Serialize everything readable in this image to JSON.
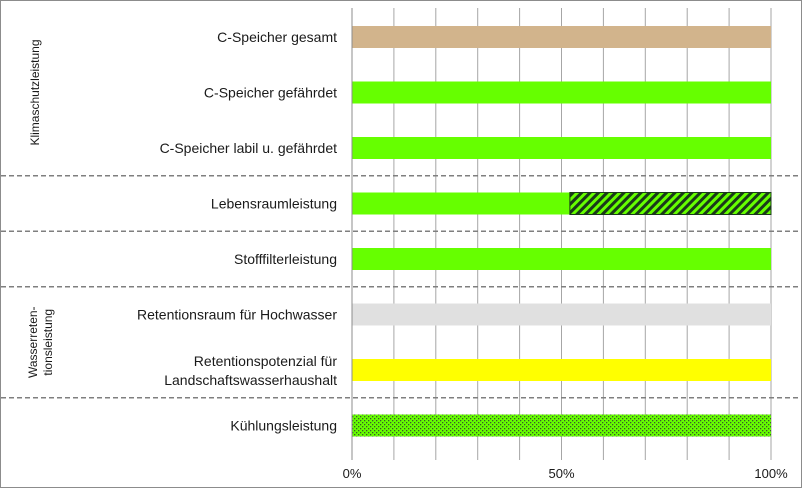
{
  "chart_data": {
    "type": "bar",
    "orientation": "horizontal",
    "stacked": true,
    "categories": [
      "C-Speicher gesamt",
      "C-Speicher gefährdet",
      "C-Speicher labil u. gefährdet",
      "Lebensraumleistung",
      "Stofffilterleistung",
      "Retentionsraum für Hochwasser",
      [
        "Retentionspotenzial für",
        "Landschaftswasserhaushalt"
      ],
      "Kühlungsleistung"
    ],
    "segments": [
      [
        {
          "value": 100,
          "color": "#d2b48c",
          "pattern": "solid"
        }
      ],
      [
        {
          "value": 100,
          "color": "#66ff00",
          "pattern": "solid"
        }
      ],
      [
        {
          "value": 100,
          "color": "#66ff00",
          "pattern": "solid"
        }
      ],
      [
        {
          "value": 52,
          "color": "#66ff00",
          "pattern": "solid"
        },
        {
          "value": 48,
          "color": "#66ff00",
          "pattern": "hatch"
        }
      ],
      [
        {
          "value": 100,
          "color": "#66ff00",
          "pattern": "solid"
        }
      ],
      [
        {
          "value": 100,
          "color": "#e0e0e0",
          "pattern": "solid"
        }
      ],
      [
        {
          "value": 100,
          "color": "#ffff00",
          "pattern": "solid"
        }
      ],
      [
        {
          "value": 100,
          "color": "#66ff00",
          "pattern": "dots"
        }
      ]
    ],
    "xlim": [
      0,
      100
    ],
    "xticks": [
      0,
      50,
      100
    ],
    "xtick_labels": [
      "0%",
      "50%",
      "100%"
    ],
    "minor_gridline_step": 10,
    "groups": [
      {
        "label": "Klimaschutzleistung",
        "categories": [
          0,
          1,
          2
        ]
      },
      {
        "label": [
          "Wasserreten-",
          "tionsleistung"
        ],
        "categories": [
          5,
          6
        ]
      }
    ],
    "separators_after": [
      2,
      3,
      4,
      6
    ],
    "grid": true,
    "legend": "none"
  }
}
